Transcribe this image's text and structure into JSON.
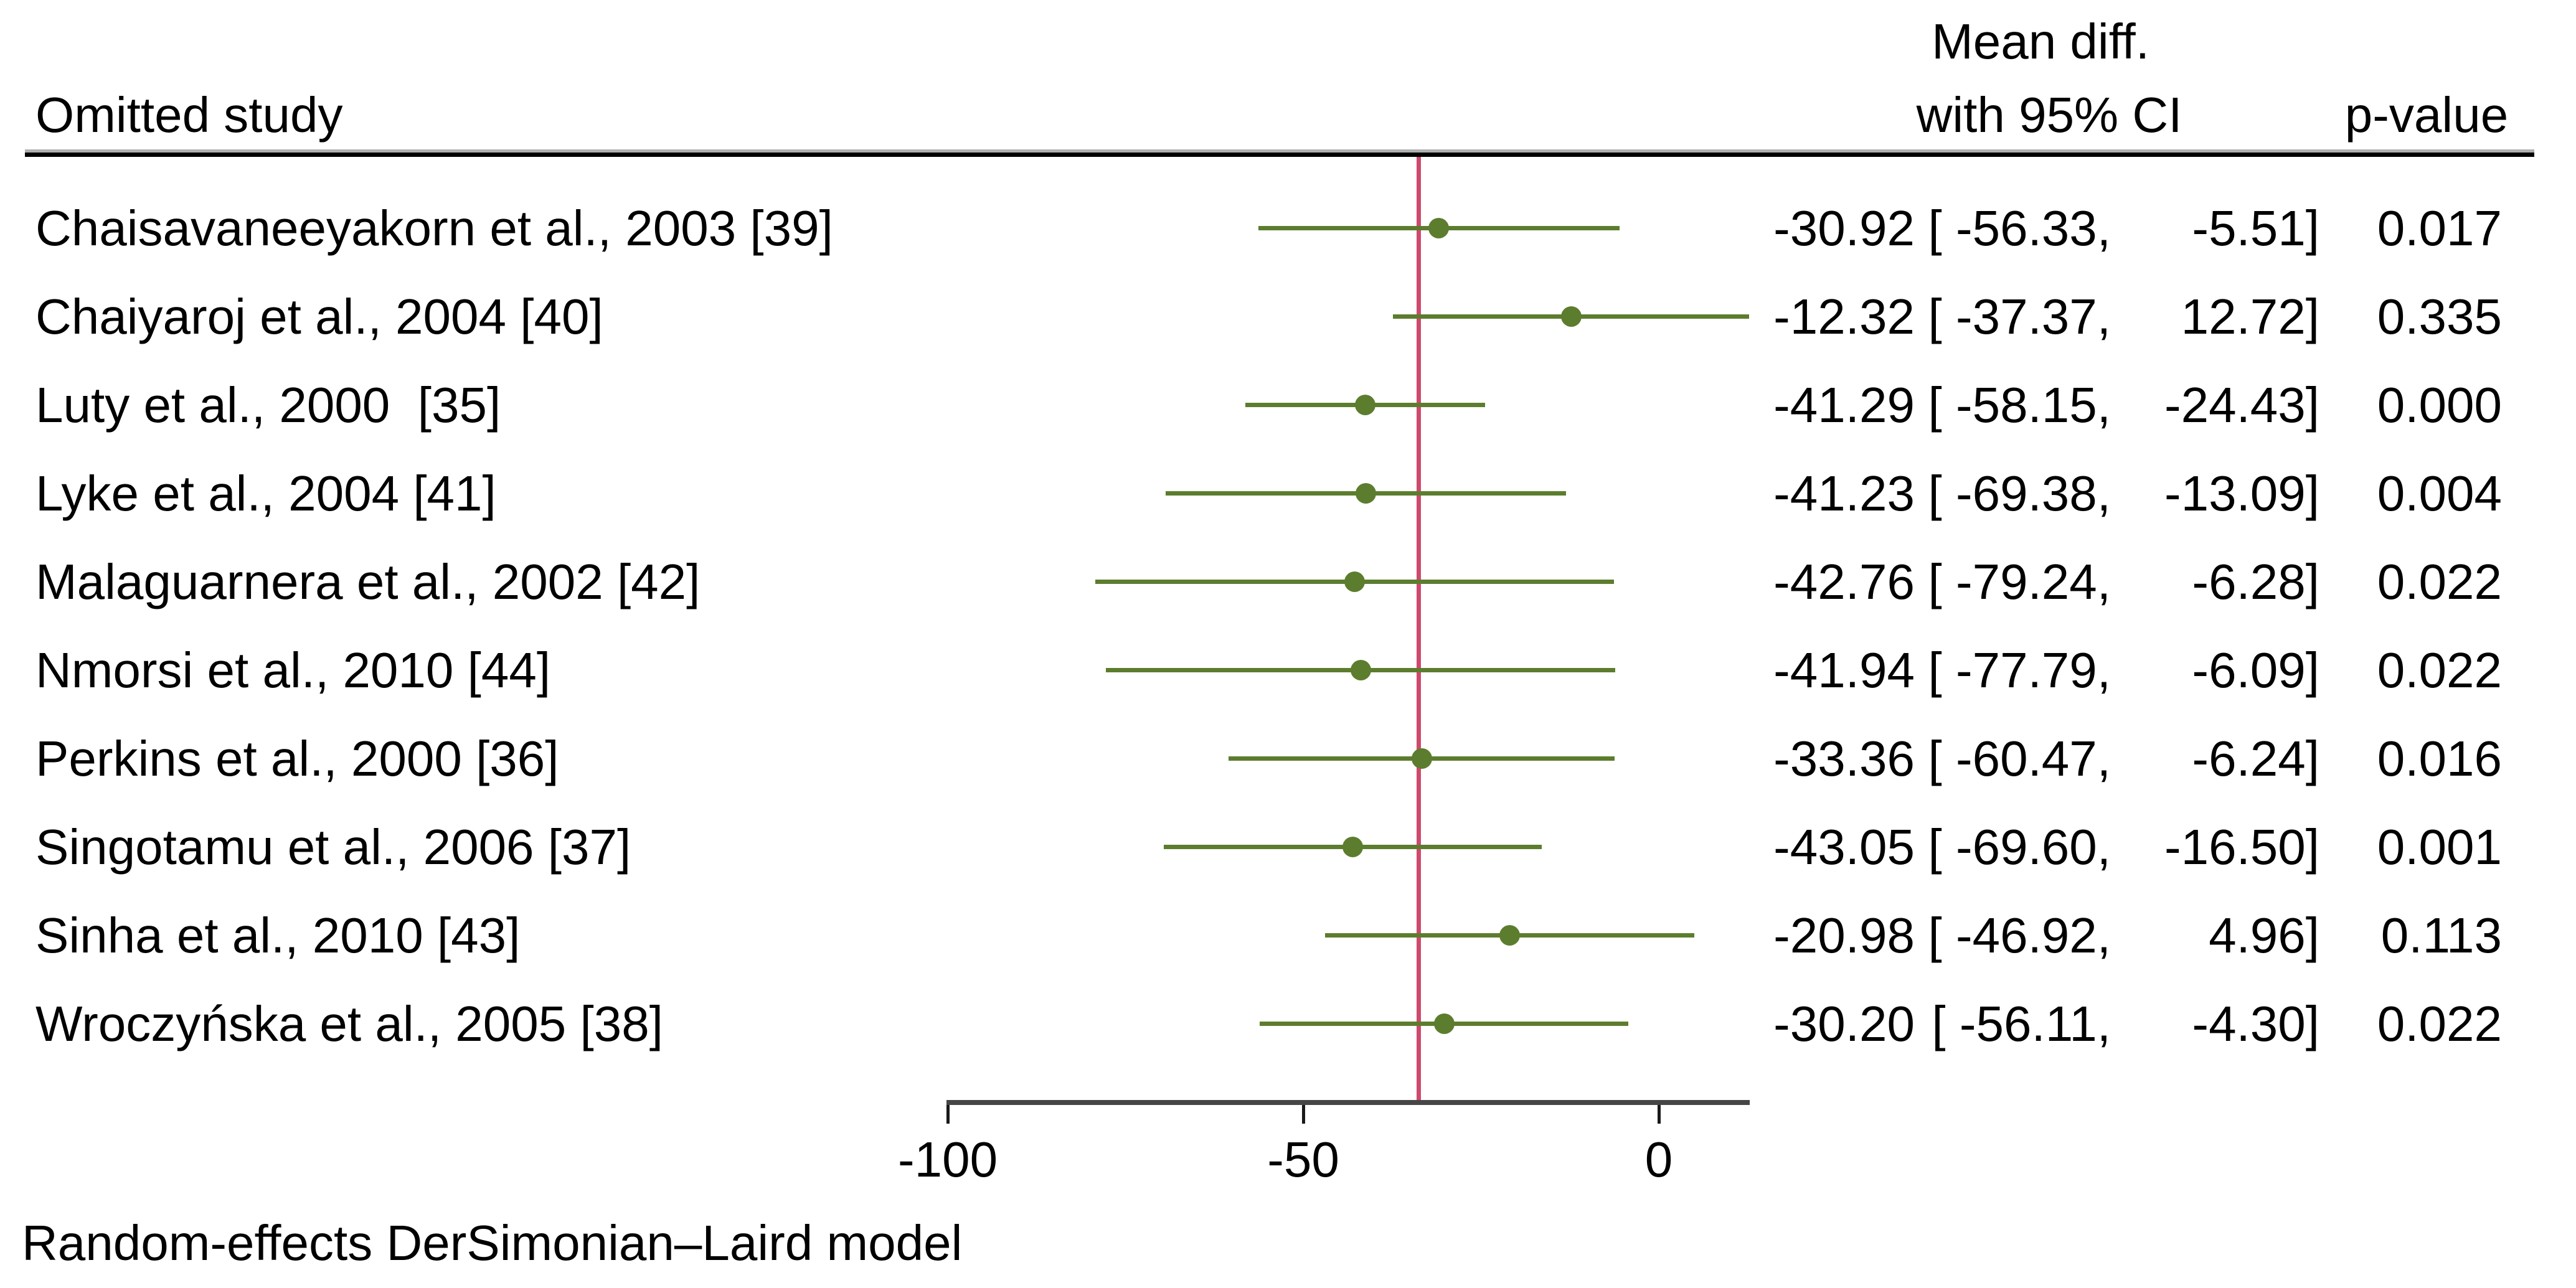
{
  "header": {
    "omitted_study": "Omitted study",
    "mean_diff_line1": "Mean diff.",
    "mean_diff_line2": "with 95% CI",
    "p_value": "p-value"
  },
  "footnote": "Random-effects DerSimonian–Laird model",
  "rows": [
    {
      "label": "Chaisavaneeyakorn et al., 2003 [39]",
      "mean": "-30.92",
      "lo": "-56.33",
      "hi": "-5.51",
      "p": "0.017"
    },
    {
      "label": "Chaiyaroj et al., 2004 [40]",
      "mean": "-12.32",
      "lo": "-37.37",
      "hi": "12.72",
      "p": "0.335"
    },
    {
      "label": "Luty et al., 2000  [35]",
      "mean": "-41.29",
      "lo": "-58.15",
      "hi": "-24.43",
      "p": "0.000"
    },
    {
      "label": "Lyke et al., 2004 [41]",
      "mean": "-41.23",
      "lo": "-69.38",
      "hi": "-13.09",
      "p": "0.004"
    },
    {
      "label": "Malaguarnera et al., 2002 [42]",
      "mean": "-42.76",
      "lo": "-79.24",
      "hi": "-6.28",
      "p": "0.022"
    },
    {
      "label": "Nmorsi et al., 2010 [44]",
      "mean": "-41.94",
      "lo": "-77.79",
      "hi": "-6.09",
      "p": "0.022"
    },
    {
      "label": "Perkins et al., 2000 [36]",
      "mean": "-33.36",
      "lo": "-60.47",
      "hi": "-6.24",
      "p": "0.016"
    },
    {
      "label": "Singotamu et al., 2006 [37]",
      "mean": "-43.05",
      "lo": "-69.60",
      "hi": "-16.50",
      "p": "0.001"
    },
    {
      "label": "Sinha et al., 2010 [43]",
      "mean": "-20.98",
      "lo": "-46.92",
      "hi": "4.96",
      "p": "0.113"
    },
    {
      "label": "Wroczyńska et al., 2005 [38]",
      "mean": "-30.20",
      "lo": "-56.11",
      "hi": "-4.30",
      "p": "0.022"
    }
  ],
  "chart_data": {
    "type": "scatter",
    "subtype": "forest-plot-leave-one-out-sensitivity",
    "title": "",
    "xlabel": "",
    "ylabel": "Omitted study",
    "value_column_header": "Mean diff. with 95% CI",
    "p_column_header": "p-value",
    "x_ticks": [
      -100,
      -50,
      0
    ],
    "xlim": [
      -104,
      13.5
    ],
    "grid": false,
    "legend": false,
    "ref_line_value": -33.8,
    "ref_line_color": "#ce4a6d",
    "marker_color": "#5c7d2e",
    "axis_color": "#464646",
    "footnote": "Random-effects DerSimonian–Laird model",
    "series": [
      {
        "study": "Chaisavaneeyakorn et al., 2003 [39]",
        "mean": -30.92,
        "ci_low": -56.33,
        "ci_high": -5.51,
        "p": 0.017
      },
      {
        "study": "Chaiyaroj et al., 2004 [40]",
        "mean": -12.32,
        "ci_low": -37.37,
        "ci_high": 12.72,
        "p": 0.335
      },
      {
        "study": "Luty et al., 2000 [35]",
        "mean": -41.29,
        "ci_low": -58.15,
        "ci_high": -24.43,
        "p": 0.0
      },
      {
        "study": "Lyke et al., 2004 [41]",
        "mean": -41.23,
        "ci_low": -69.38,
        "ci_high": -13.09,
        "p": 0.004
      },
      {
        "study": "Malaguarnera et al., 2002 [42]",
        "mean": -42.76,
        "ci_low": -79.24,
        "ci_high": -6.28,
        "p": 0.022
      },
      {
        "study": "Nmorsi et al., 2010 [44]",
        "mean": -41.94,
        "ci_low": -77.79,
        "ci_high": -6.09,
        "p": 0.022
      },
      {
        "study": "Perkins et al., 2000 [36]",
        "mean": -33.36,
        "ci_low": -60.47,
        "ci_high": -6.24,
        "p": 0.016
      },
      {
        "study": "Singotamu et al., 2006 [37]",
        "mean": -43.05,
        "ci_low": -69.6,
        "ci_high": -16.5,
        "p": 0.001
      },
      {
        "study": "Sinha et al., 2010 [43]",
        "mean": -20.98,
        "ci_low": -46.92,
        "ci_high": 4.96,
        "p": 0.113
      },
      {
        "study": "Wroczyńska et al., 2005 [38]",
        "mean": -30.2,
        "ci_low": -56.11,
        "ci_high": -4.3,
        "p": 0.022
      }
    ]
  }
}
